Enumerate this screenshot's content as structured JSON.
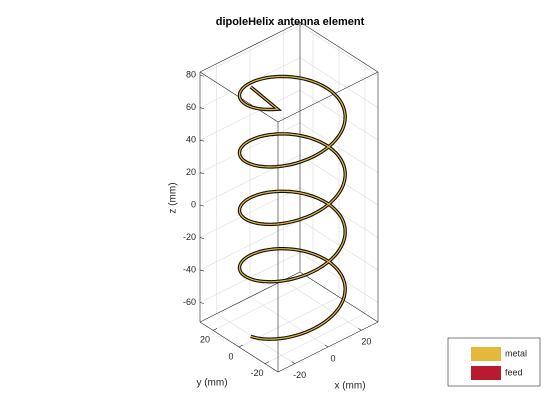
{
  "chart_data": {
    "type": "helix3d",
    "title": "dipoleHelix antenna element",
    "xlabel": "x (mm)",
    "ylabel": "y (mm)",
    "zlabel": "z (mm)",
    "xlim": [
      -30,
      30
    ],
    "ylim": [
      -30,
      30
    ],
    "zlim": [
      -72,
      82
    ],
    "xticks": [
      -20,
      0,
      20
    ],
    "yticks": [
      -20,
      0,
      20
    ],
    "zticks": [
      -60,
      -40,
      -20,
      0,
      20,
      40,
      60,
      80
    ],
    "grid": true,
    "legend": "southeast",
    "series": [
      {
        "name": "metal",
        "color": "#e5b83b"
      },
      {
        "name": "feed",
        "color": "#b81a2f"
      }
    ]
  }
}
